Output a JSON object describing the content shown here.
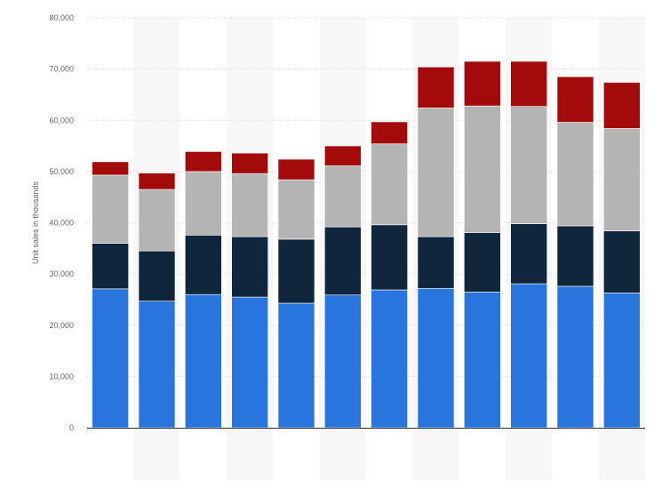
{
  "chart_data": {
    "type": "bar",
    "stacked": true,
    "title": "",
    "xlabel": "",
    "ylabel": "Unit sales in thousands",
    "ylim": [
      0,
      80000
    ],
    "yticks": [
      0,
      10000,
      20000,
      30000,
      40000,
      50000,
      60000,
      70000,
      80000
    ],
    "ytick_labels": [
      "0",
      "10,000",
      "20,000",
      "30,000",
      "40,000",
      "50,000",
      "60,000",
      "70,000",
      "80,000"
    ],
    "grid": true,
    "legend": "none",
    "categories": [
      "",
      "",
      "",
      "",
      "",
      "",
      "",
      "",
      "",
      "",
      "",
      ""
    ],
    "series": [
      {
        "color": "#2876dd",
        "values": [
          27100,
          24700,
          26000,
          25500,
          24300,
          25900,
          26900,
          27200,
          26500,
          28100,
          27600,
          26300
        ]
      },
      {
        "color": "#10263d",
        "values": [
          8900,
          9800,
          11600,
          11800,
          12500,
          13300,
          12700,
          10100,
          11600,
          11700,
          11800,
          12100
        ]
      },
      {
        "color": "#b4b4b4",
        "values": [
          13300,
          12000,
          12400,
          12300,
          11600,
          11900,
          15800,
          25100,
          24700,
          22900,
          20200,
          20000
        ]
      },
      {
        "color": "#a30b0b",
        "values": [
          2600,
          3200,
          3900,
          4000,
          4000,
          3900,
          4300,
          8000,
          8700,
          8800,
          8900,
          9000
        ]
      }
    ]
  }
}
